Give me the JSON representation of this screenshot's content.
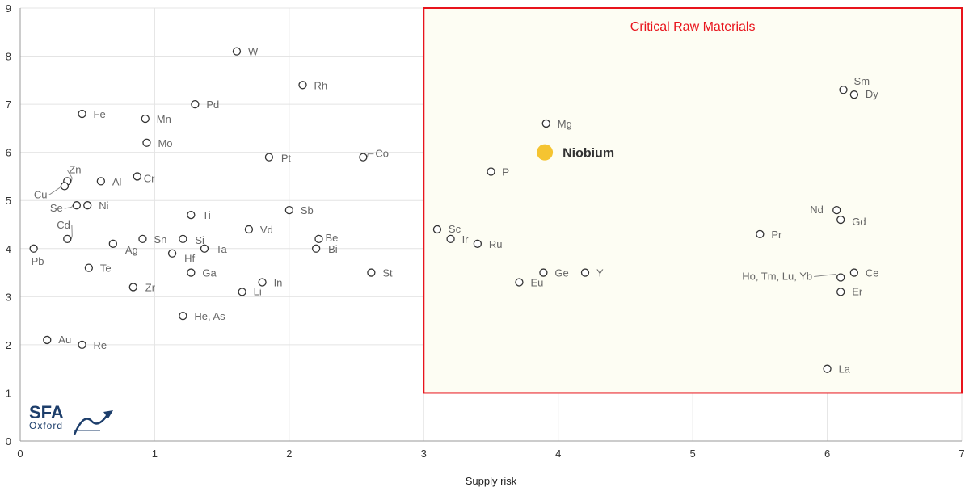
{
  "chart_data": {
    "type": "scatter",
    "xlabel": "Supply risk",
    "ylabel": "",
    "xlim": [
      0,
      7
    ],
    "ylim": [
      0,
      9
    ],
    "x_ticks": [
      "0",
      "1",
      "2",
      "3",
      "4",
      "5",
      "6",
      "7"
    ],
    "y_ticks": [
      "0",
      "1",
      "2",
      "3",
      "4",
      "5",
      "6",
      "7",
      "8",
      "9"
    ],
    "grid": true,
    "critical_region": {
      "label": "Critical Raw Materials",
      "x": [
        3,
        7
      ],
      "y": [
        1,
        9
      ],
      "border_color": "#e8141c",
      "fill_color": "#fdfdf3"
    },
    "highlight": {
      "name": "Niobium",
      "x": 3.9,
      "y": 6.0,
      "color": "#f5c431"
    },
    "points": [
      {
        "name": "W",
        "x": 1.61,
        "y": 8.1
      },
      {
        "name": "Rh",
        "x": 2.1,
        "y": 7.4
      },
      {
        "name": "Pd",
        "x": 1.3,
        "y": 7.0
      },
      {
        "name": "Fe",
        "x": 0.46,
        "y": 6.8
      },
      {
        "name": "Mn",
        "x": 0.93,
        "y": 6.7
      },
      {
        "name": "Mo",
        "x": 0.94,
        "y": 6.2
      },
      {
        "name": "Pt",
        "x": 1.85,
        "y": 5.9
      },
      {
        "name": "Co",
        "x": 2.55,
        "y": 5.9
      },
      {
        "name": "Zn",
        "x": 0.35,
        "y": 5.4
      },
      {
        "name": "Al",
        "x": 0.6,
        "y": 5.4
      },
      {
        "name": "Cr",
        "x": 0.87,
        "y": 5.5
      },
      {
        "name": "Cu",
        "x": 0.33,
        "y": 5.3
      },
      {
        "name": "Se",
        "x": 0.42,
        "y": 4.9
      },
      {
        "name": "Ni",
        "x": 0.5,
        "y": 4.9
      },
      {
        "name": "Sb",
        "x": 2.0,
        "y": 4.8
      },
      {
        "name": "Ti",
        "x": 1.27,
        "y": 4.7
      },
      {
        "name": "Vd",
        "x": 1.7,
        "y": 4.4
      },
      {
        "name": "Cd",
        "x": 0.35,
        "y": 4.2
      },
      {
        "name": "Ag",
        "x": 0.69,
        "y": 4.1
      },
      {
        "name": "Sn",
        "x": 0.91,
        "y": 4.2
      },
      {
        "name": "Si",
        "x": 1.21,
        "y": 4.2
      },
      {
        "name": "Be",
        "x": 2.22,
        "y": 4.2
      },
      {
        "name": "Bi",
        "x": 2.2,
        "y": 4.0
      },
      {
        "name": "Hf",
        "x": 1.13,
        "y": 3.9
      },
      {
        "name": "Ta",
        "x": 1.37,
        "y": 4.0
      },
      {
        "name": "Pb",
        "x": 0.1,
        "y": 4.0
      },
      {
        "name": "Te",
        "x": 0.51,
        "y": 3.6
      },
      {
        "name": "Ga",
        "x": 1.27,
        "y": 3.5
      },
      {
        "name": "St",
        "x": 2.61,
        "y": 3.5
      },
      {
        "name": "In",
        "x": 1.8,
        "y": 3.3
      },
      {
        "name": "Zr",
        "x": 0.84,
        "y": 3.2
      },
      {
        "name": "Li",
        "x": 1.65,
        "y": 3.1
      },
      {
        "name": "He, As",
        "x": 1.21,
        "y": 2.6
      },
      {
        "name": "Au",
        "x": 0.2,
        "y": 2.1
      },
      {
        "name": "Re",
        "x": 0.46,
        "y": 2.0
      },
      {
        "name": "Mg",
        "x": 3.91,
        "y": 6.6
      },
      {
        "name": "P",
        "x": 3.5,
        "y": 5.6
      },
      {
        "name": "Sc",
        "x": 3.1,
        "y": 4.4
      },
      {
        "name": "Ir",
        "x": 3.2,
        "y": 4.2
      },
      {
        "name": "Ru",
        "x": 3.4,
        "y": 4.1
      },
      {
        "name": "Ge",
        "x": 3.89,
        "y": 3.5
      },
      {
        "name": "Y",
        "x": 4.2,
        "y": 3.5
      },
      {
        "name": "Eu",
        "x": 3.71,
        "y": 3.3
      },
      {
        "name": "Sm",
        "x": 6.12,
        "y": 7.3
      },
      {
        "name": "Dy",
        "x": 6.2,
        "y": 7.2
      },
      {
        "name": "Nd",
        "x": 6.07,
        "y": 4.8
      },
      {
        "name": "Gd",
        "x": 6.1,
        "y": 4.6
      },
      {
        "name": "Pr",
        "x": 5.5,
        "y": 4.3
      },
      {
        "name": "Ce",
        "x": 6.2,
        "y": 3.5
      },
      {
        "name": "Ho, Tm, Lu, Yb",
        "x": 6.1,
        "y": 3.4
      },
      {
        "name": "Er",
        "x": 6.1,
        "y": 3.1
      },
      {
        "name": "La",
        "x": 6.0,
        "y": 1.5
      }
    ]
  },
  "logo": {
    "main": "SFA",
    "sub": "Oxford",
    "color": "#1d3e6b"
  }
}
